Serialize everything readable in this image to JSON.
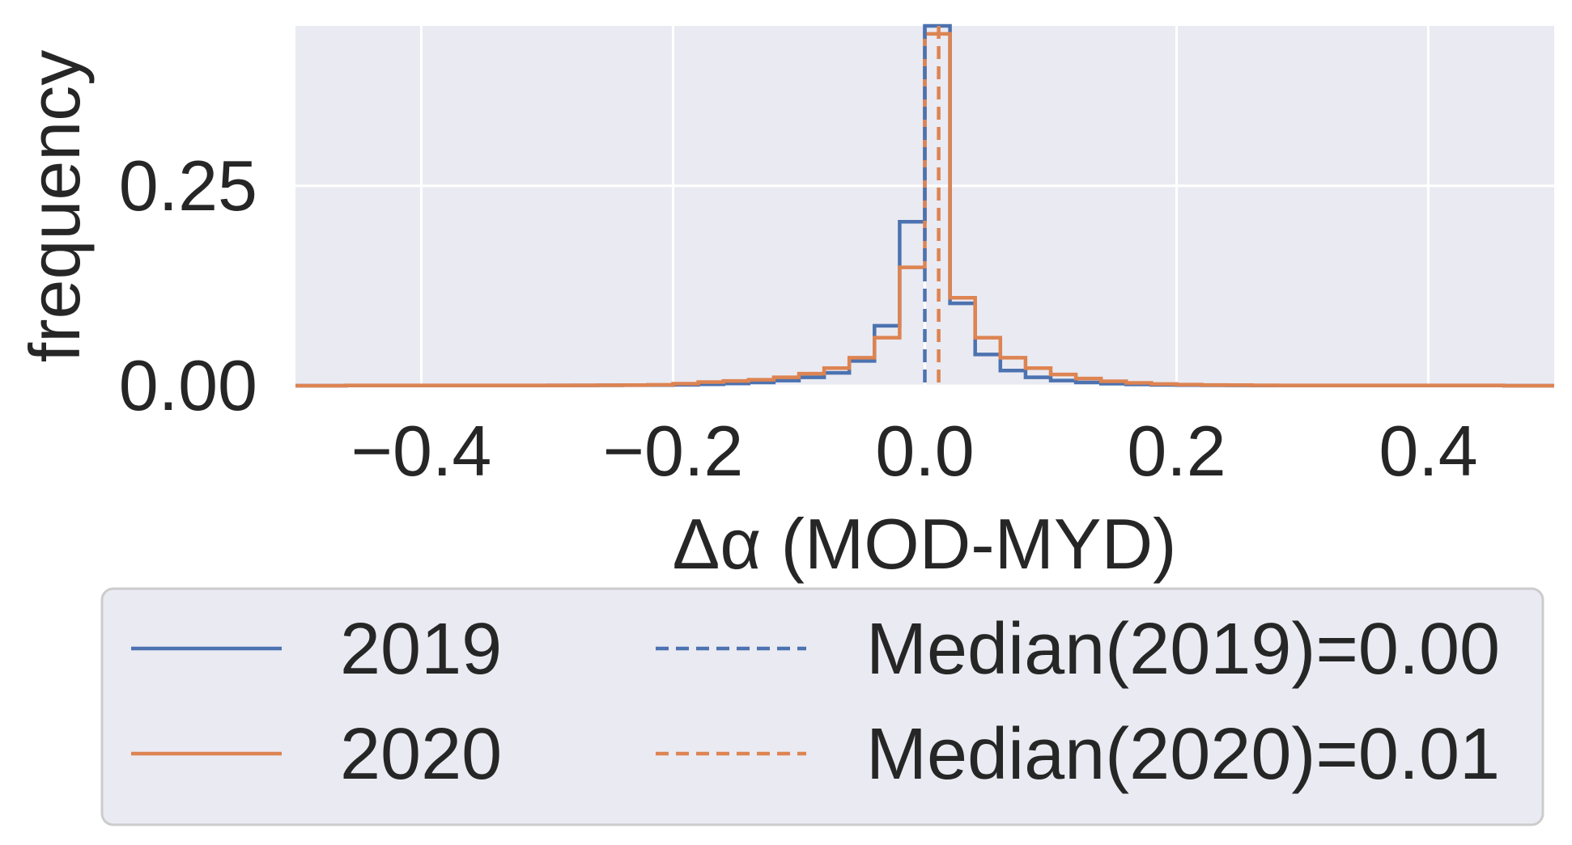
{
  "chart_data": {
    "type": "line",
    "style": "step-histogram",
    "xlabel": "Δα (MOD-MYD)",
    "ylabel": "frequency",
    "xlim": [
      -0.5,
      0.5
    ],
    "ylim": [
      0,
      0.45
    ],
    "xticks": [
      -0.4,
      -0.2,
      0.0,
      0.2,
      0.4
    ],
    "xtick_labels": [
      "−0.4",
      "−0.2",
      "0.0",
      "0.2",
      "0.4"
    ],
    "yticks": [
      0.0,
      0.25
    ],
    "ytick_labels": [
      "0.00",
      "0.25"
    ],
    "grid": true,
    "background": "#eaeaf2",
    "legend": {
      "position": "below",
      "columns": 2,
      "items": [
        {
          "label": "2019",
          "style": "solid",
          "color": "#4c72b0"
        },
        {
          "label": "2020",
          "style": "solid",
          "color": "#dd8452"
        },
        {
          "label": "Median(2019)=0.00",
          "style": "dashed",
          "color": "#4c72b0"
        },
        {
          "label": "Median(2020)=0.01",
          "style": "dashed",
          "color": "#dd8452"
        }
      ]
    },
    "bin_edges": [
      -0.46,
      -0.44,
      -0.42,
      -0.4,
      -0.38,
      -0.36,
      -0.34,
      -0.32,
      -0.3,
      -0.28,
      -0.26,
      -0.24,
      -0.22,
      -0.2,
      -0.18,
      -0.16,
      -0.14,
      -0.12,
      -0.1,
      -0.08,
      -0.06,
      -0.04,
      -0.02,
      0.0,
      0.02,
      0.04,
      0.06,
      0.08,
      0.1,
      0.12,
      0.14,
      0.16,
      0.18,
      0.2,
      0.22,
      0.24,
      0.26,
      0.28,
      0.3,
      0.32,
      0.34,
      0.36,
      0.38,
      0.4,
      0.42,
      0.44,
      0.46
    ],
    "series": [
      {
        "name": "2019",
        "color": "#4c72b0",
        "values": [
          0.0003,
          0.0003,
          0.0003,
          0.0003,
          0.0003,
          0.0003,
          0.0003,
          0.0003,
          0.0004,
          0.0004,
          0.0005,
          0.0006,
          0.0008,
          0.0012,
          0.0018,
          0.0028,
          0.004,
          0.0065,
          0.0105,
          0.016,
          0.031,
          0.075,
          0.205,
          0.45,
          0.103,
          0.039,
          0.019,
          0.0105,
          0.0065,
          0.004,
          0.0025,
          0.0016,
          0.001,
          0.0007,
          0.0005,
          0.0004,
          0.0003,
          0.0003,
          0.0003,
          0.0003,
          0.0003,
          0.0003,
          0.0003,
          0.0003,
          0.0003,
          0.0003
        ]
      },
      {
        "name": "2020",
        "color": "#dd8452",
        "values": [
          0.0004,
          0.0004,
          0.0004,
          0.0004,
          0.0004,
          0.0004,
          0.0004,
          0.0004,
          0.0004,
          0.0005,
          0.0006,
          0.0008,
          0.0012,
          0.0025,
          0.0045,
          0.006,
          0.0075,
          0.0105,
          0.015,
          0.022,
          0.035,
          0.06,
          0.148,
          0.44,
          0.11,
          0.06,
          0.035,
          0.022,
          0.014,
          0.009,
          0.0055,
          0.0035,
          0.0022,
          0.0014,
          0.0009,
          0.0007,
          0.0005,
          0.0004,
          0.0004,
          0.0004,
          0.0004,
          0.0004,
          0.0004,
          0.0004,
          0.0004,
          0.0004
        ]
      }
    ],
    "medians": [
      {
        "name": "Median(2019)=0.00",
        "value": 0.0,
        "color": "#4c72b0"
      },
      {
        "name": "Median(2020)=0.01",
        "value": 0.011,
        "color": "#dd8452"
      }
    ]
  }
}
